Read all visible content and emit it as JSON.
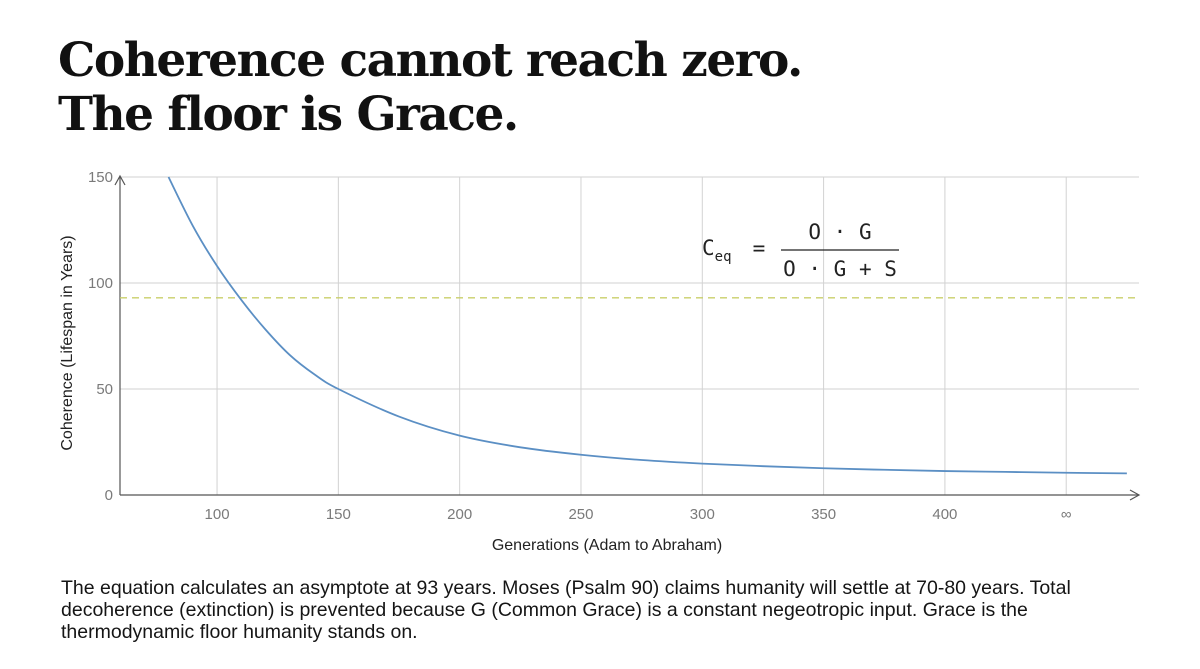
{
  "title": {
    "line1": "Coherence cannot reach zero.",
    "line2": "The floor is Grace."
  },
  "chart_data": {
    "type": "line",
    "xlabel": "Generations (Adam to Abraham)",
    "ylabel": "Coherence (Lifespan in Years)",
    "x_ticks": [
      "100",
      "150",
      "200",
      "250",
      "300",
      "350",
      "400",
      "∞"
    ],
    "y_ticks": [
      "0",
      "50",
      "100",
      "150"
    ],
    "xlim": [
      60,
      480
    ],
    "ylim": [
      0,
      150
    ],
    "grid": true,
    "series": [
      {
        "color": "#5b8fc4",
        "x": [
          80,
          90,
          100,
          110,
          120,
          130,
          140,
          150,
          175,
          200,
          225,
          250,
          275,
          300,
          325,
          350,
          375,
          400,
          425,
          450,
          475
        ],
        "y": [
          150,
          127,
          108,
          92,
          78,
          66,
          57,
          50,
          37,
          28,
          22.5,
          19,
          16.5,
          14.8,
          13.6,
          12.6,
          11.9,
          11.3,
          10.9,
          10.5,
          10.2
        ]
      }
    ],
    "reference_line": {
      "y": 93,
      "style": "dashed",
      "color": "#c9cf6a"
    },
    "equation": {
      "lhs": "C",
      "lhs_sub": "eq",
      "equals": "=",
      "numerator": "O · G",
      "denominator": "O · G + S"
    }
  },
  "caption": "The equation calculates an asymptote at 93 years. Moses (Psalm 90) claims humanity will settle at 70-80 years. Total decoherence (extinction) is prevented because G (Common Grace) is a constant negeotropic input. Grace is the thermodynamic floor humanity stands on."
}
